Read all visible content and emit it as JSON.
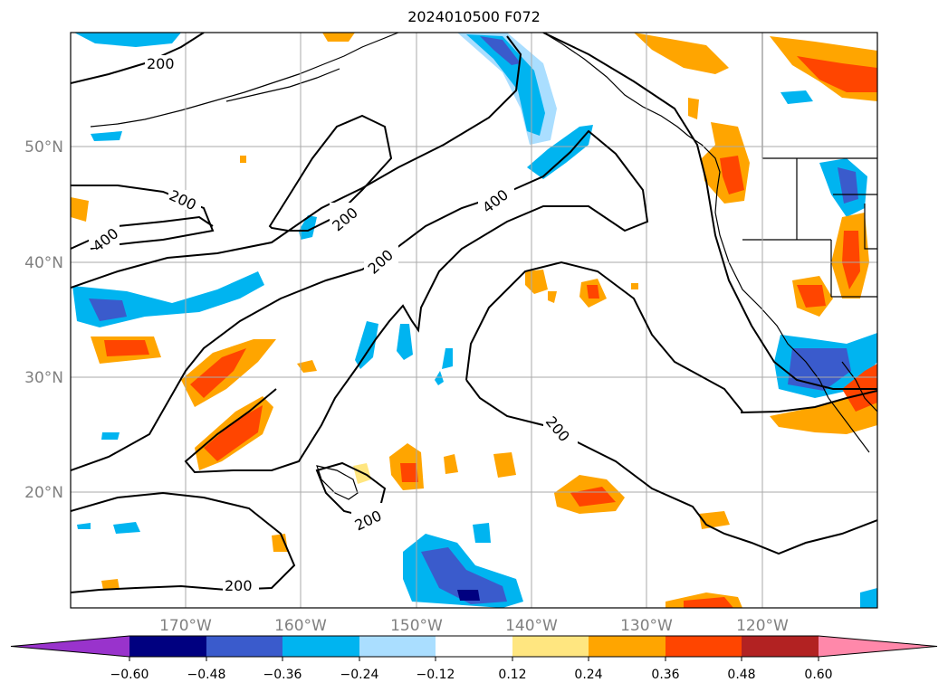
{
  "title": "2024010500 F072",
  "lat_labels": [
    "50°N",
    "40°N",
    "30°N",
    "20°N"
  ],
  "lon_labels": [
    "170°W",
    "160°W",
    "150°W",
    "140°W",
    "130°W",
    "120°W"
  ],
  "contour_labels": [
    "200",
    "200",
    "400",
    "200",
    "200",
    "400",
    "200",
    "200",
    "200",
    "200"
  ],
  "colorbar": {
    "ticks": [
      "−0.60",
      "−0.48",
      "−0.36",
      "−0.24",
      "−0.12",
      "0.12",
      "0.24",
      "0.36",
      "0.48",
      "0.60"
    ],
    "colors": [
      "#9933cc",
      "#000080",
      "#3a5bcc",
      "#00b4f0",
      "#aadeff",
      "#ffffff",
      "#ffe680",
      "#ffa500",
      "#ff4500",
      "#b22222",
      "#ff88aa"
    ]
  },
  "colors": {
    "grid": "#aaaaaa",
    "tick_label": "#808080",
    "contour": "#000000"
  }
}
